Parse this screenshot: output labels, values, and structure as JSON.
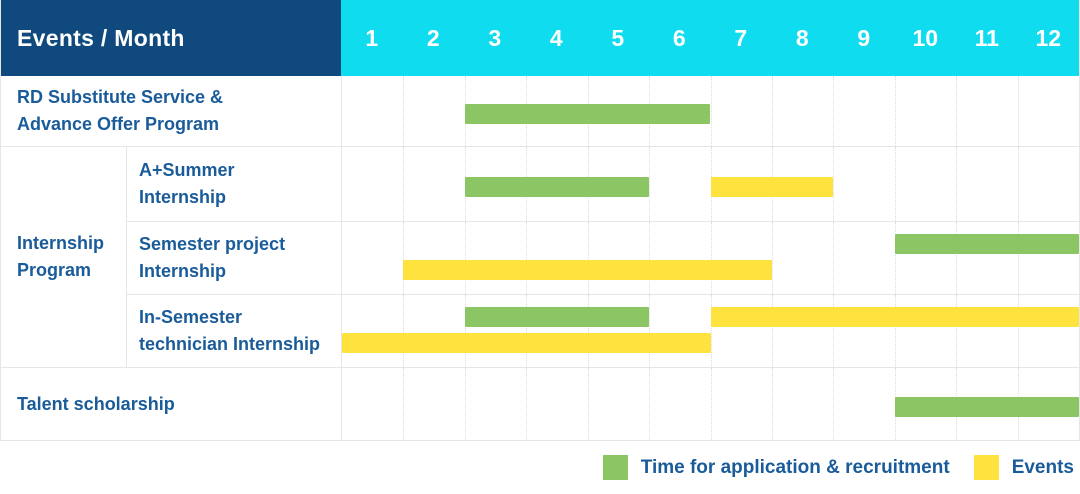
{
  "header": {
    "title": "Events / Month"
  },
  "months": [
    "1",
    "2",
    "3",
    "4",
    "5",
    "6",
    "7",
    "8",
    "9",
    "10",
    "11",
    "12"
  ],
  "colors": {
    "header_bg": "#10497e",
    "month_header_bg": "#0fdcef",
    "header_text": "#ffffff",
    "label_text": "#1a5b9a",
    "grid_line": "#e6e6e6",
    "application": "#8cc563",
    "event": "#fee23e"
  },
  "chart_data": {
    "type": "gantt",
    "title": "Events / Month",
    "x_axis": {
      "unit": "month",
      "ticks": [
        1,
        2,
        3,
        4,
        5,
        6,
        7,
        8,
        9,
        10,
        11,
        12
      ],
      "range": [
        1,
        12
      ]
    },
    "grid": true,
    "groups": [
      {
        "label": "Internship Program",
        "label_lines": [
          "Internship",
          "Program"
        ],
        "row_indexes": [
          1,
          2,
          3
        ]
      }
    ],
    "rows": [
      {
        "label": "RD Substitute Service & Advance Offer Program",
        "label_lines": [
          "RD Substitute Service &",
          "Advance Offer Program"
        ],
        "lines": 1,
        "bars": [
          {
            "type": "application",
            "start": 3,
            "end": 6,
            "line": 1
          }
        ]
      },
      {
        "group": "Internship Program",
        "label": "A+Summer Internship",
        "label_lines": [
          "A+Summer",
          "Internship"
        ],
        "lines": 1,
        "bars": [
          {
            "type": "application",
            "start": 3,
            "end": 5,
            "line": 1
          },
          {
            "type": "event",
            "start": 7,
            "end": 8,
            "line": 1
          }
        ]
      },
      {
        "group": "Internship Program",
        "label": "Semester project Internship",
        "label_lines": [
          "Semester project",
          "Internship"
        ],
        "lines": 2,
        "bars": [
          {
            "type": "application",
            "start": 10,
            "end": 12,
            "line": 1
          },
          {
            "type": "event",
            "start": 2,
            "end": 7,
            "line": 2
          }
        ]
      },
      {
        "group": "Internship Program",
        "label": "In-Semester technician Internship",
        "label_lines": [
          "In-Semester",
          "technician Internship"
        ],
        "lines": 2,
        "bars": [
          {
            "type": "application",
            "start": 3,
            "end": 5,
            "line": 1
          },
          {
            "type": "event",
            "start": 7,
            "end": 12,
            "line": 1
          },
          {
            "type": "event",
            "start": 1,
            "end": 6,
            "line": 2
          }
        ]
      },
      {
        "label": "Talent scholarship",
        "label_lines": [
          "Talent scholarship"
        ],
        "lines": 1,
        "bars": [
          {
            "type": "application",
            "start": 10,
            "end": 12,
            "line": 1
          }
        ]
      }
    ],
    "legend": [
      {
        "key": "application",
        "label": "Time for application & recruitment"
      },
      {
        "key": "event",
        "label": "Events"
      }
    ],
    "legend_position": "bottom-right"
  }
}
